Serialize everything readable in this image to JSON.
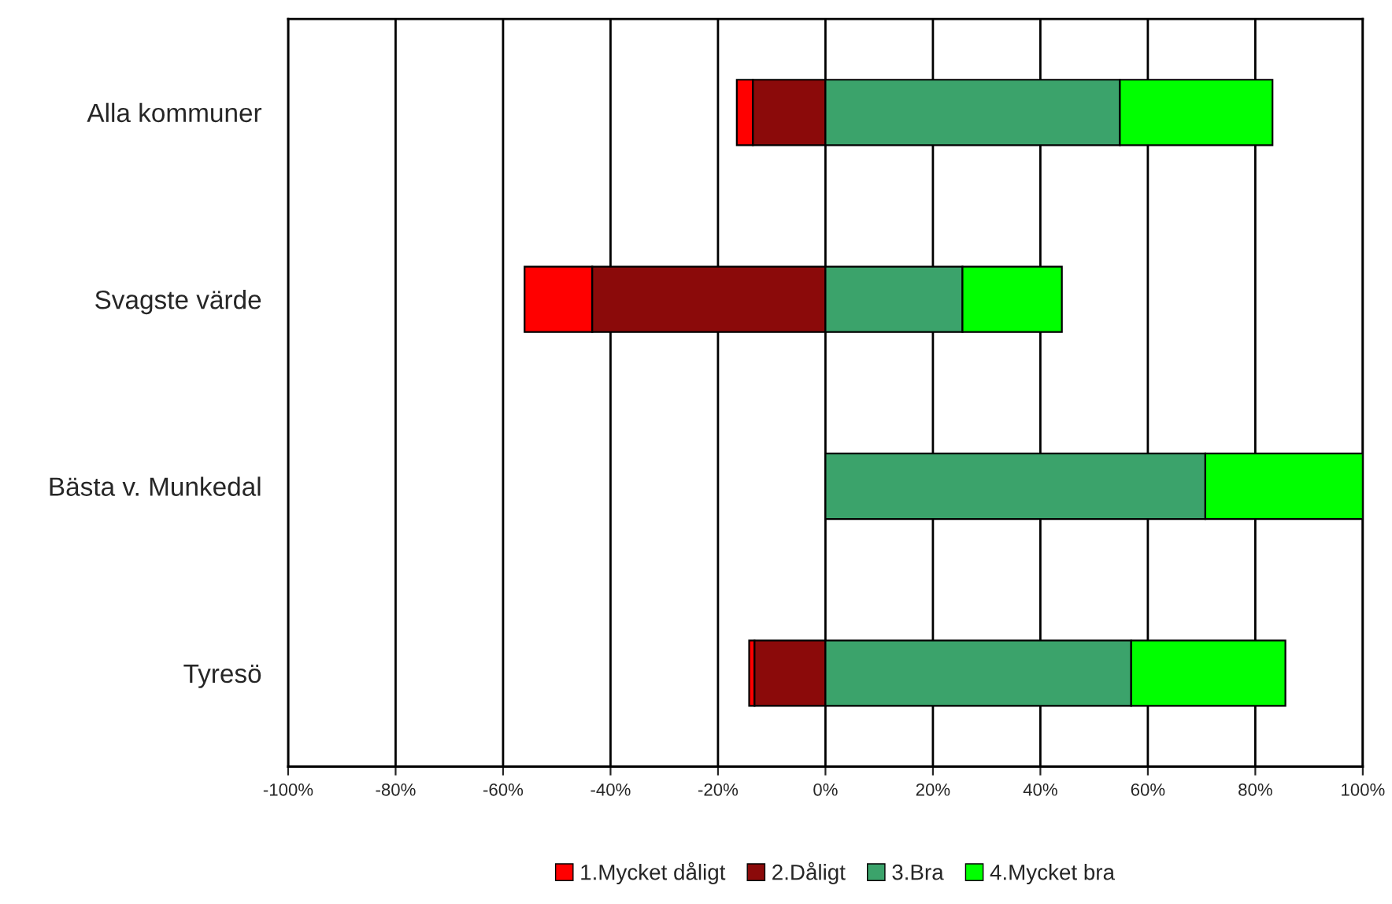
{
  "chart_data": {
    "type": "bar",
    "orientation": "horizontal",
    "stacked": true,
    "categories": [
      "Alla kommuner",
      "Svagste värde",
      "Bästa v. Munkedal",
      "Tyresö"
    ],
    "series": [
      {
        "name": "1.Mycket dåligt",
        "color": "#ff0000",
        "values": [
          -3,
          -12.6,
          null,
          -1
        ]
      },
      {
        "name": "2.Dåligt",
        "color": "#8b0a0a",
        "values": [
          -13.5,
          -43.4,
          null,
          -13.2
        ]
      },
      {
        "name": "3.Bra",
        "color": "#3ba36b",
        "values": [
          54.8,
          25.5,
          70.7,
          56.9
        ]
      },
      {
        "name": "4.Mycket bra",
        "color": "#00ff00",
        "values": [
          28.4,
          18.5,
          29.3,
          28.7
        ]
      }
    ],
    "xlim": [
      -100,
      100
    ],
    "xticks": [
      {
        "value": -100,
        "label": "-100%"
      },
      {
        "value": -80,
        "label": "-80%"
      },
      {
        "value": -60,
        "label": "-60%"
      },
      {
        "value": -40,
        "label": "-40%"
      },
      {
        "value": -20,
        "label": "-20%"
      },
      {
        "value": 0,
        "label": "0%"
      },
      {
        "value": 20,
        "label": "20%"
      },
      {
        "value": 40,
        "label": "40%"
      },
      {
        "value": 60,
        "label": "60%"
      },
      {
        "value": 80,
        "label": "80%"
      },
      {
        "value": 100,
        "label": "100%"
      }
    ],
    "grid": "x",
    "legend": "bottom"
  }
}
